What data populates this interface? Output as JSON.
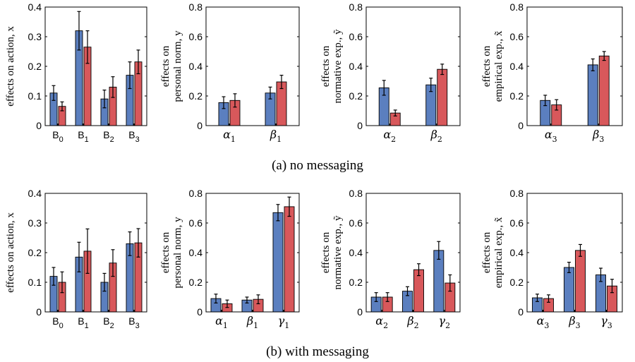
{
  "colors": {
    "series1": "#5b7fbf",
    "series2": "#d8585b"
  },
  "captions": [
    "(a) no messaging",
    "(b) with messaging"
  ],
  "chart_data": [
    {
      "type": "bar",
      "row": 0,
      "ylabel": [
        "effects on action, x"
      ],
      "ylim": [
        0,
        0.4
      ],
      "yticks": [
        "0",
        "0.1",
        "0.2",
        "0.3",
        "0.4"
      ],
      "categories": [
        {
          "base": "B",
          "sub": "0"
        },
        {
          "base": "B",
          "sub": "1"
        },
        {
          "base": "B",
          "sub": "2"
        },
        {
          "base": "B",
          "sub": "3"
        }
      ],
      "series": [
        {
          "values": [
            0.11,
            0.32,
            0.09,
            0.17
          ],
          "err": [
            0.025,
            0.065,
            0.03,
            0.045
          ]
        },
        {
          "values": [
            0.065,
            0.265,
            0.13,
            0.215
          ],
          "err": [
            0.015,
            0.055,
            0.035,
            0.04
          ]
        }
      ]
    },
    {
      "type": "bar",
      "row": 0,
      "ylabel": [
        "effects on",
        "personal norm, y"
      ],
      "ylim": [
        0,
        0.8
      ],
      "yticks": [
        "0",
        "0.2",
        "0.4",
        "0.6",
        "0.8"
      ],
      "categories": [
        {
          "base": "α",
          "sub": "1"
        },
        {
          "base": "β",
          "sub": "1"
        }
      ],
      "series": [
        {
          "values": [
            0.155,
            0.22
          ],
          "err": [
            0.04,
            0.04
          ]
        },
        {
          "values": [
            0.17,
            0.295
          ],
          "err": [
            0.045,
            0.045
          ]
        }
      ]
    },
    {
      "type": "bar",
      "row": 0,
      "ylabel": [
        "effects on",
        "normative exp., ỹ"
      ],
      "ylim": [
        0,
        0.8
      ],
      "yticks": [
        "0",
        "0.2",
        "0.4",
        "0.6",
        "0.8"
      ],
      "categories": [
        {
          "base": "α",
          "sub": "2"
        },
        {
          "base": "β",
          "sub": "2"
        }
      ],
      "series": [
        {
          "values": [
            0.255,
            0.275
          ],
          "err": [
            0.05,
            0.045
          ]
        },
        {
          "values": [
            0.085,
            0.38
          ],
          "err": [
            0.02,
            0.035
          ]
        }
      ]
    },
    {
      "type": "bar",
      "row": 0,
      "ylabel": [
        "effects on",
        "empirical exp., x̃"
      ],
      "ylim": [
        0,
        0.8
      ],
      "yticks": [
        "0",
        "0.2",
        "0.4",
        "0.6",
        "0.8"
      ],
      "categories": [
        {
          "base": "α",
          "sub": "3"
        },
        {
          "base": "β",
          "sub": "3"
        }
      ],
      "series": [
        {
          "values": [
            0.17,
            0.41
          ],
          "err": [
            0.035,
            0.04
          ]
        },
        {
          "values": [
            0.14,
            0.47
          ],
          "err": [
            0.035,
            0.03
          ]
        }
      ]
    },
    {
      "type": "bar",
      "row": 1,
      "ylabel": [
        "effects on action, x"
      ],
      "ylim": [
        0,
        0.4
      ],
      "yticks": [
        "0",
        "0.1",
        "0.2",
        "0.3",
        "0.4"
      ],
      "categories": [
        {
          "base": "B",
          "sub": "0"
        },
        {
          "base": "B",
          "sub": "1"
        },
        {
          "base": "B",
          "sub": "2"
        },
        {
          "base": "B",
          "sub": "3"
        }
      ],
      "series": [
        {
          "values": [
            0.12,
            0.185,
            0.1,
            0.23
          ],
          "err": [
            0.03,
            0.05,
            0.03,
            0.04
          ]
        },
        {
          "values": [
            0.1,
            0.205,
            0.165,
            0.233
          ],
          "err": [
            0.035,
            0.075,
            0.045,
            0.048
          ]
        }
      ]
    },
    {
      "type": "bar",
      "row": 1,
      "ylabel": [
        "effects on",
        "personal norm, y"
      ],
      "ylim": [
        0,
        0.8
      ],
      "yticks": [
        "0",
        "0.2",
        "0.4",
        "0.6",
        "0.8"
      ],
      "categories": [
        {
          "base": "α",
          "sub": "1"
        },
        {
          "base": "β",
          "sub": "1"
        },
        {
          "base": "γ",
          "sub": "1"
        }
      ],
      "series": [
        {
          "values": [
            0.09,
            0.08,
            0.67
          ],
          "err": [
            0.03,
            0.02,
            0.055
          ]
        },
        {
          "values": [
            0.055,
            0.085,
            0.71
          ],
          "err": [
            0.025,
            0.03,
            0.065
          ]
        }
      ]
    },
    {
      "type": "bar",
      "row": 1,
      "ylabel": [
        "effects on",
        "normative exp., ỹ"
      ],
      "ylim": [
        0,
        0.8
      ],
      "yticks": [
        "0",
        "0.2",
        "0.4",
        "0.6",
        "0.8"
      ],
      "categories": [
        {
          "base": "α",
          "sub": "2"
        },
        {
          "base": "β",
          "sub": "2"
        },
        {
          "base": "γ",
          "sub": "2"
        }
      ],
      "series": [
        {
          "values": [
            0.1,
            0.14,
            0.415
          ],
          "err": [
            0.03,
            0.03,
            0.06
          ]
        },
        {
          "values": [
            0.1,
            0.285,
            0.195
          ],
          "err": [
            0.03,
            0.04,
            0.055
          ]
        }
      ]
    },
    {
      "type": "bar",
      "row": 1,
      "ylabel": [
        "effects on",
        "empirical exp., x̃"
      ],
      "ylim": [
        0,
        0.8
      ],
      "yticks": [
        "0",
        "0.2",
        "0.4",
        "0.6",
        "0.8"
      ],
      "categories": [
        {
          "base": "α",
          "sub": "3"
        },
        {
          "base": "β",
          "sub": "3"
        },
        {
          "base": "γ",
          "sub": "3"
        }
      ],
      "series": [
        {
          "values": [
            0.095,
            0.3,
            0.25
          ],
          "err": [
            0.025,
            0.035,
            0.045
          ]
        },
        {
          "values": [
            0.09,
            0.415,
            0.175
          ],
          "err": [
            0.025,
            0.04,
            0.045
          ]
        }
      ]
    }
  ]
}
